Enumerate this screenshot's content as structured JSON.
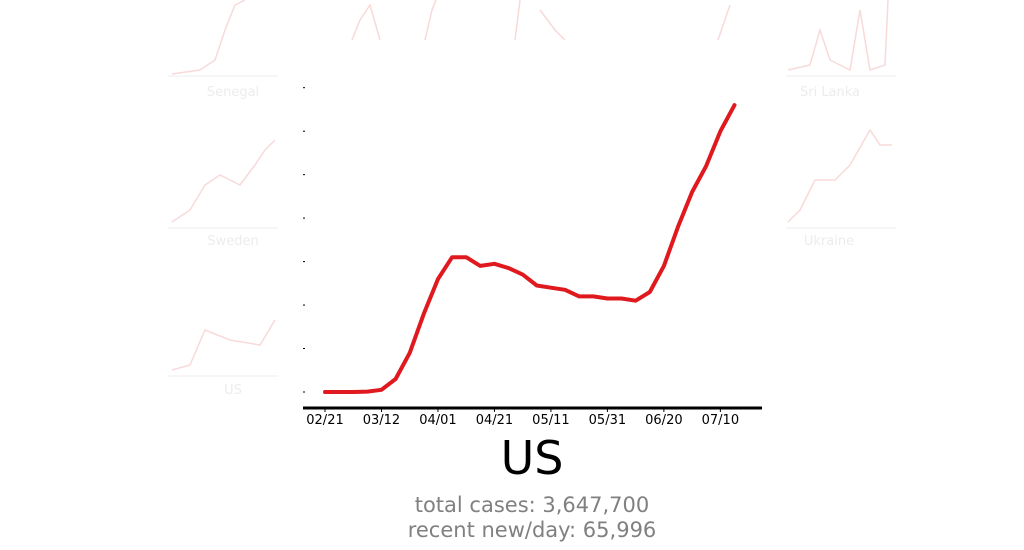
{
  "background_cards": [
    "Senegal",
    "Sri Lanka",
    "Sweden",
    "Ukraine",
    "US"
  ],
  "chart_data": {
    "type": "line",
    "title": "US",
    "stats": [
      "total cases: 3,647,700",
      "recent new/day: 65,996"
    ],
    "categories": [
      "02/21",
      null,
      null,
      null,
      "03/12",
      null,
      null,
      null,
      "04/01",
      null,
      null,
      null,
      "04/21",
      null,
      null,
      null,
      "05/11",
      null,
      null,
      null,
      "05/31",
      null,
      null,
      null,
      "06/20",
      null,
      null,
      null,
      "07/10",
      null
    ],
    "series": [
      {
        "color": "#e0191e",
        "values": [
          0,
          0,
          0,
          100,
          500,
          3000,
          9000,
          18000,
          26000,
          31000,
          31000,
          29000,
          29500,
          28500,
          27000,
          24500,
          24000,
          23500,
          22000,
          22000,
          21500,
          21500,
          21000,
          23000,
          29000,
          38000,
          46000,
          52000,
          60000,
          66000
        ]
      }
    ],
    "ylim": [
      0,
      72000
    ],
    "yticks": [
      0,
      10000,
      20000,
      30000,
      40000,
      50000,
      60000,
      70000
    ]
  }
}
